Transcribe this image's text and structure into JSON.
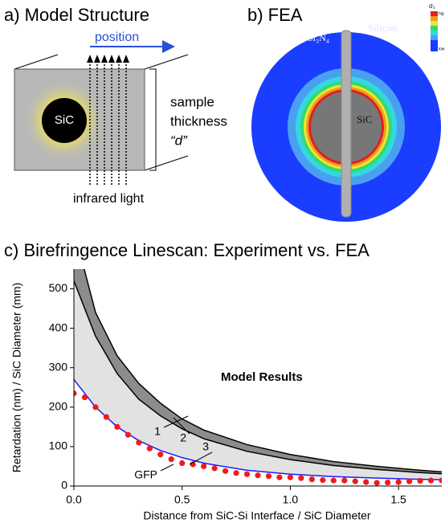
{
  "panel_a": {
    "title": "a) Model Structure",
    "position": "position",
    "core": "SiC",
    "sample_lines": [
      "sample",
      "thickness",
      "“d”"
    ],
    "light": "infrared light"
  },
  "panel_b": {
    "title": "b) FEA",
    "nitride": "Si₃N₄",
    "silicon": "Silicon",
    "core": "SiC",
    "scale_title": "σ₁",
    "scale_high": "hig",
    "scale_low": "low"
  },
  "chart_data": {
    "type": "line",
    "title": "c) Birefringence Linescan: Experiment vs. FEA",
    "x_label": "Distance from SiC-Si Interface / SiC Diameter",
    "y_label": "Retardation (nm) / SiC Diameter (mm)",
    "annotation": "Model Results",
    "xlim": [
      0,
      1.7
    ],
    "ylim": [
      0,
      550
    ],
    "xticks": [
      {
        "value": 0,
        "label": "0.0"
      },
      0.5,
      {
        "value": 1,
        "label": "1.0"
      },
      1.5
    ],
    "yticks": [
      0,
      100,
      200,
      300,
      400,
      500
    ],
    "series": [
      {
        "name": "1",
        "color": "#000000",
        "fill": "#8c8c8c",
        "x": [
          0,
          0.1,
          0.2,
          0.3,
          0.4,
          0.5,
          0.6,
          0.8,
          1.0,
          1.2,
          1.4,
          1.6,
          1.7
        ],
        "values": [
          650,
          440,
          330,
          260,
          210,
          170,
          142,
          105,
          80,
          62,
          50,
          40,
          36
        ]
      },
      {
        "name": "2",
        "color": "#000000",
        "fill": "#e2e2e2",
        "x": [
          0,
          0.1,
          0.2,
          0.3,
          0.4,
          0.5,
          0.6,
          0.8,
          1.0,
          1.2,
          1.4,
          1.6,
          1.7
        ],
        "values": [
          520,
          380,
          285,
          220,
          178,
          145,
          120,
          88,
          67,
          52,
          42,
          34,
          31
        ]
      },
      {
        "name": "3",
        "color": "#1a1aff",
        "x": [
          0,
          0.1,
          0.2,
          0.3,
          0.4,
          0.5,
          0.6,
          0.8,
          1.0,
          1.2,
          1.4,
          1.6,
          1.7
        ],
        "values": [
          270,
          200,
          150,
          115,
          90,
          72,
          58,
          40,
          30,
          24,
          20,
          17,
          16
        ]
      },
      {
        "name": "GFP",
        "color": "#ee1c1c",
        "marker": "dot",
        "x": [
          0,
          0.05,
          0.1,
          0.15,
          0.2,
          0.25,
          0.3,
          0.35,
          0.4,
          0.45,
          0.5,
          0.55,
          0.6,
          0.65,
          0.7,
          0.75,
          0.8,
          0.85,
          0.9,
          0.95,
          1.0,
          1.05,
          1.1,
          1.15,
          1.2,
          1.25,
          1.3,
          1.35,
          1.4,
          1.45,
          1.5,
          1.55,
          1.6,
          1.65,
          1.7
        ],
        "values": [
          235,
          225,
          200,
          175,
          150,
          130,
          110,
          95,
          80,
          68,
          58,
          55,
          50,
          45,
          38,
          33,
          30,
          27,
          25,
          22,
          22,
          20,
          17,
          15,
          14,
          14,
          12,
          10,
          8,
          9,
          10,
          12,
          13,
          14,
          14
        ]
      }
    ]
  }
}
